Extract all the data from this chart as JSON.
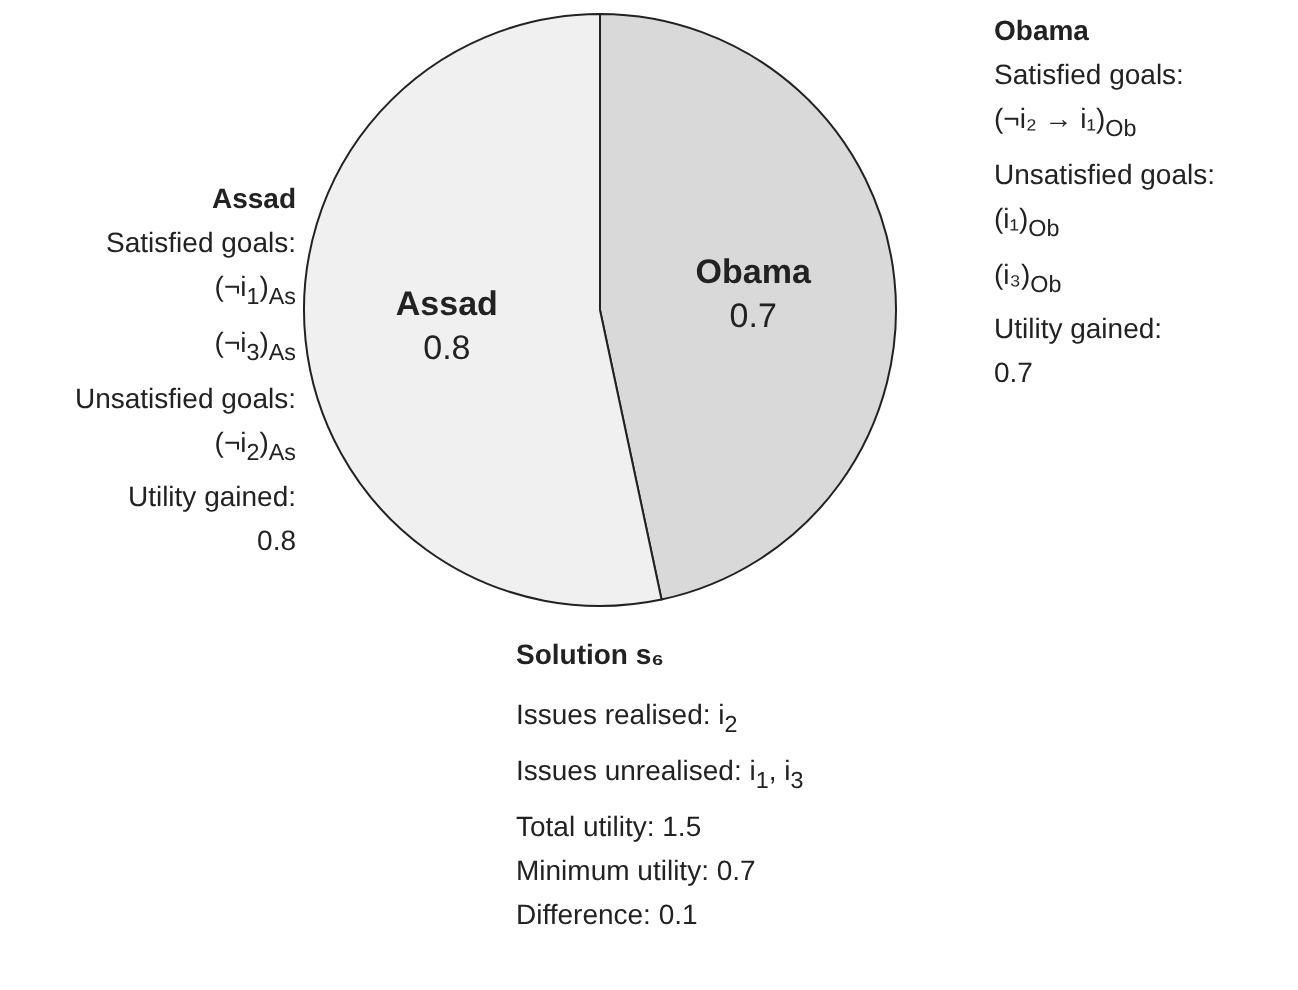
{
  "chart_data": {
    "type": "pie",
    "categories": [
      "Obama",
      "Assad"
    ],
    "values": [
      0.7,
      0.8
    ],
    "colors": [
      "#d9d9d9",
      "#f0f0f0"
    ],
    "data_labels": true,
    "legend": false,
    "annotations": [
      "Assad\nSatisfied goals:\n(¬i$_{1}$)$_{As}$\n(¬i$_{3}$)$_{As}$\nUnsatisfied goals:\n(¬i$_{2}$)$_{As}$\nUtility gained:\n0.8",
      "Obama\nSatisfied goals:\n(¬i₂ → i₁)$_{Ob}$\nUnsatisfied goals:\n(i₁)$_{Ob}$\n(i₃)$_{Ob}$\nUtility gained:\n0.7",
      "Solution s₆\nIssues realised: i$_{2}$\nIssues unrealised: i$_{1}$, i$_{3}$\nTotal utility: 1.5\nMinimum utility: 0.7\nDifference: 0.1"
    ]
  }
}
